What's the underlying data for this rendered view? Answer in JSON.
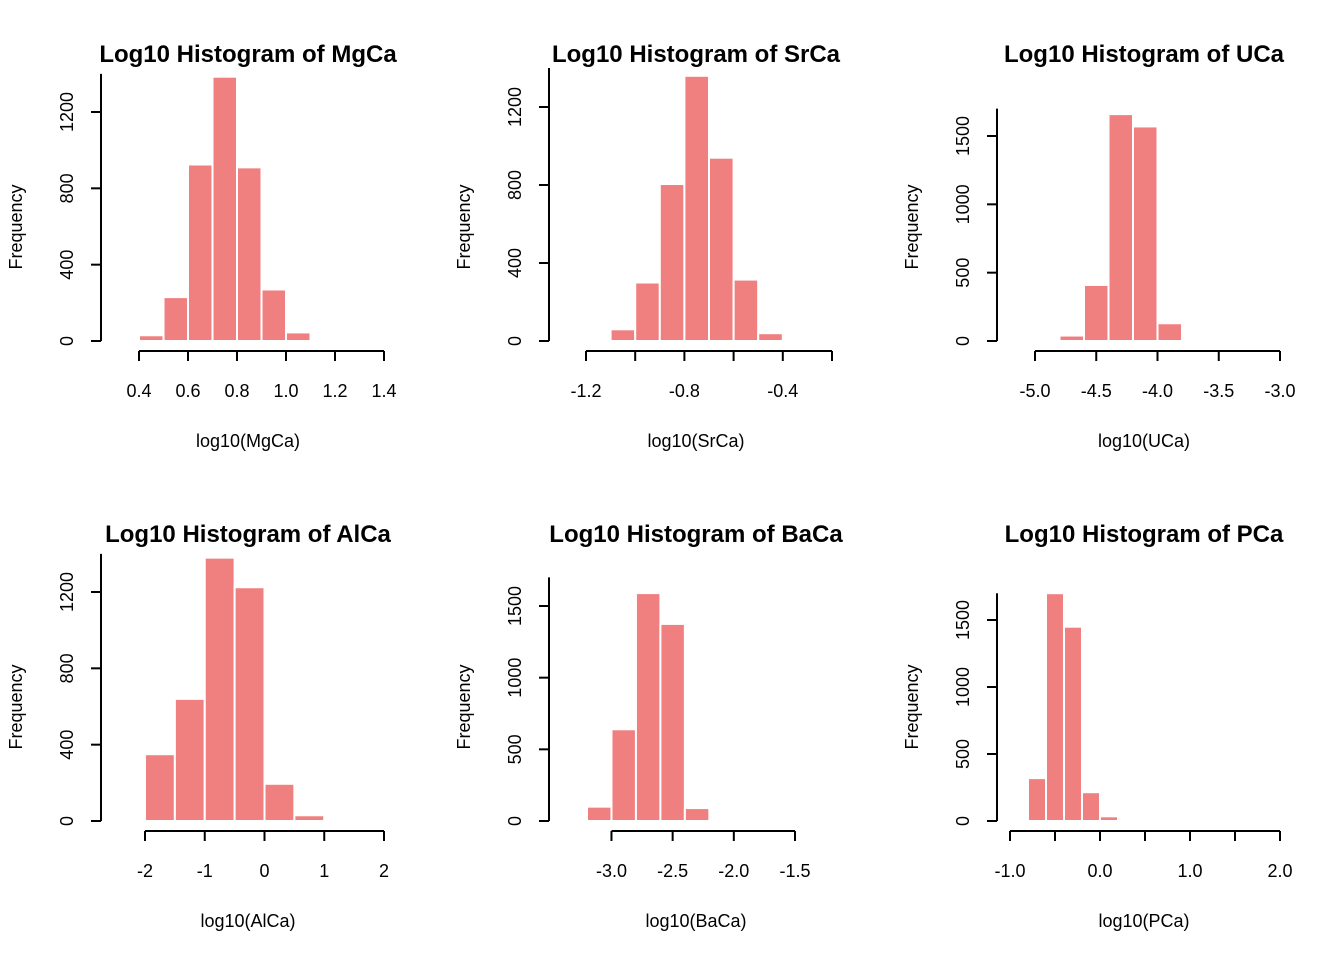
{
  "bar_color": "#F08080",
  "bar_edge_color": "#ffffff",
  "chart_data": [
    {
      "type": "bar",
      "title": "Log10 Histogram of MgCa",
      "xlabel": "log10(MgCa)",
      "ylabel": "Frequency",
      "xlim": [
        0.4,
        1.4
      ],
      "xticks": [
        0.4,
        0.6,
        0.8,
        1.0,
        1.2,
        1.4
      ],
      "xtick_labels": [
        "0.4",
        "0.6",
        "0.8",
        "1.0",
        "1.2",
        "1.4"
      ],
      "ylim": [
        0,
        1400
      ],
      "yticks": [
        0,
        400,
        800,
        1200
      ],
      "ytick_labels": [
        "0",
        "400",
        "800",
        "1200"
      ],
      "bin_edges": [
        0.4,
        0.5,
        0.6,
        0.7,
        0.8,
        0.9,
        1.0,
        1.1
      ],
      "values": [
        30,
        230,
        925,
        1385,
        910,
        270,
        45
      ]
    },
    {
      "type": "bar",
      "title": "Log10 Histogram of SrCa",
      "xlabel": "log10(SrCa)",
      "ylabel": "Frequency",
      "xlim": [
        -1.2,
        -0.2
      ],
      "xticks": [
        -1.2,
        -1.0,
        -0.8,
        -0.6,
        -0.4,
        -0.2
      ],
      "xtick_labels": [
        "-1.2",
        "",
        "-0.8",
        "",
        "-0.4",
        ""
      ],
      "ylim": [
        0,
        1400
      ],
      "yticks": [
        0,
        400,
        800,
        1200
      ],
      "ytick_labels": [
        "0",
        "400",
        "800",
        "1200"
      ],
      "bin_edges": [
        -1.1,
        -1.0,
        -0.9,
        -0.8,
        -0.7,
        -0.6,
        -0.5,
        -0.4
      ],
      "values": [
        60,
        300,
        805,
        1360,
        940,
        315,
        40
      ]
    },
    {
      "type": "bar",
      "title": "Log10 Histogram of UCa",
      "xlabel": "log10(UCa)",
      "ylabel": "Frequency",
      "xlim": [
        -5.0,
        -3.0
      ],
      "xticks": [
        -5.0,
        -4.5,
        -4.0,
        -3.5,
        -3.0
      ],
      "xtick_labels": [
        "-5.0",
        "-4.5",
        "-4.0",
        "-3.5",
        "-3.0"
      ],
      "ylim": [
        0,
        1700
      ],
      "yticks": [
        0,
        500,
        1000,
        1500
      ],
      "ytick_labels": [
        "0",
        "500",
        "1000",
        "1500"
      ],
      "bin_edges": [
        -4.8,
        -4.6,
        -4.4,
        -4.2,
        -4.0,
        -3.8
      ],
      "values": [
        40,
        410,
        1660,
        1570,
        130
      ]
    },
    {
      "type": "bar",
      "title": "Log10 Histogram of AlCa",
      "xlabel": "log10(AlCa)",
      "ylabel": "Frequency",
      "xlim": [
        -2,
        2
      ],
      "xticks": [
        -2,
        -1,
        0,
        1,
        2
      ],
      "xtick_labels": [
        "-2",
        "-1",
        "0",
        "1",
        "2"
      ],
      "ylim": [
        0,
        1400
      ],
      "yticks": [
        0,
        400,
        800,
        1200
      ],
      "ytick_labels": [
        "0",
        "400",
        "800",
        "1200"
      ],
      "bin_edges": [
        -2.0,
        -1.5,
        -1.0,
        -0.5,
        0.0,
        0.5,
        1.0,
        1.5
      ],
      "values": [
        350,
        640,
        1380,
        1225,
        195,
        30,
        8
      ]
    },
    {
      "type": "bar",
      "title": "Log10 Histogram of BaCa",
      "xlabel": "log10(BaCa)",
      "ylabel": "Frequency",
      "xlim": [
        -3.2,
        -1.5
      ],
      "xticks": [
        -3.0,
        -2.5,
        -2.0,
        -1.5
      ],
      "xtick_labels": [
        "-3.0",
        "-2.5",
        "-2.0",
        "-1.5"
      ],
      "ylim": [
        0,
        1700
      ],
      "yticks": [
        0,
        500,
        1000,
        1500
      ],
      "ytick_labels": [
        "0",
        "500",
        "1000",
        "1500"
      ],
      "bin_edges": [
        -3.2,
        -3.0,
        -2.8,
        -2.6,
        -2.4,
        -2.2
      ],
      "values": [
        100,
        640,
        1590,
        1375,
        90
      ]
    },
    {
      "type": "bar",
      "title": "Log10 Histogram of PCa",
      "xlabel": "log10(PCa)",
      "ylabel": "Frequency",
      "xlim": [
        -1.0,
        2.0
      ],
      "xticks": [
        -1.0,
        -0.5,
        0.0,
        0.5,
        1.0,
        1.5,
        2.0
      ],
      "xtick_labels": [
        "-1.0",
        "",
        "0.0",
        "",
        "1.0",
        "",
        "2.0"
      ],
      "ylim": [
        0,
        1700
      ],
      "yticks": [
        0,
        500,
        1000,
        1500
      ],
      "ytick_labels": [
        "0",
        "500",
        "1000",
        "1500"
      ],
      "bin_edges": [
        -0.8,
        -0.6,
        -0.4,
        -0.2,
        0.0,
        0.2
      ],
      "values": [
        320,
        1700,
        1450,
        215,
        35
      ]
    }
  ]
}
